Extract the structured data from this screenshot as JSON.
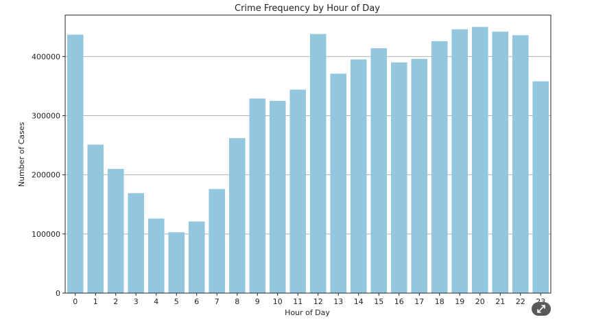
{
  "chart_data": {
    "type": "bar",
    "title": "Crime Frequency by Hour of Day",
    "xlabel": "Hour of Day",
    "ylabel": "Number of Cases",
    "categories": [
      "0",
      "1",
      "2",
      "3",
      "4",
      "5",
      "6",
      "7",
      "8",
      "9",
      "10",
      "11",
      "12",
      "13",
      "14",
      "15",
      "16",
      "17",
      "18",
      "19",
      "20",
      "21",
      "22",
      "23"
    ],
    "values": [
      437000,
      251000,
      210000,
      169000,
      126000,
      103000,
      121000,
      176000,
      262000,
      329000,
      325000,
      344000,
      438000,
      371000,
      395000,
      414000,
      390000,
      396000,
      426000,
      446000,
      450000,
      442000,
      436000,
      358000
    ],
    "ylim": [
      0,
      470000
    ],
    "yticks": [
      0,
      100000,
      200000,
      300000,
      400000
    ],
    "ytick_labels": [
      "0",
      "100000",
      "200000",
      "300000",
      "400000"
    ],
    "grid": "horizontal",
    "bar_color": "#92c7dd"
  },
  "expand_button": {
    "icon": "expand-arrows-icon"
  }
}
